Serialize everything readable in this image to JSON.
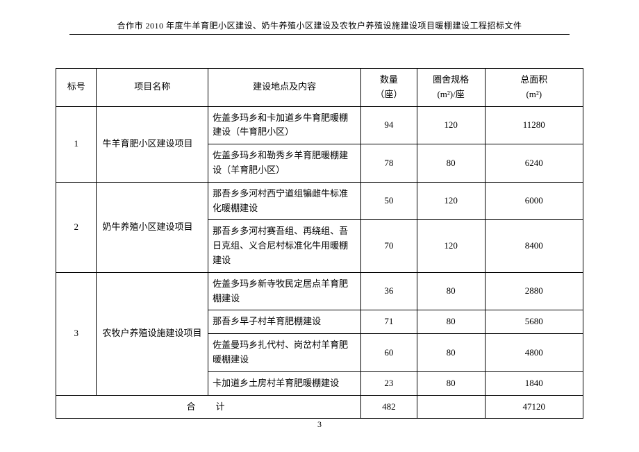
{
  "header": {
    "title": "合作市 2010 年度牛羊育肥小区建设、奶牛养殖小区建设及农牧户养殖设施建设项目暖棚建设工程招标文件"
  },
  "table": {
    "columns": {
      "idx": "标号",
      "name": "项目名称",
      "loc": "建设地点及内容",
      "qty_line1": "数量",
      "qty_line2": "（座）",
      "spec_line1": "圈舍规格",
      "spec_line2": "(m²)/座",
      "area_line1": "总面积",
      "area_line2": "(m²)"
    },
    "groups": [
      {
        "idx": "1",
        "name": "牛羊育肥小区建设项目",
        "rows": [
          {
            "loc": "佐盖多玛乡和卡加道乡牛育肥暖棚建设（牛育肥小区）",
            "qty": "94",
            "spec": "120",
            "area": "11280"
          },
          {
            "loc": "佐盖多玛乡和勒秀乡羊育肥暖棚建设（羊育肥小区）",
            "qty": "78",
            "spec": "80",
            "area": "6240"
          }
        ]
      },
      {
        "idx": "2",
        "name": "奶牛养殖小区建设项目",
        "rows": [
          {
            "loc": "那吾乡多河村西宁道组犏雌牛标准化暖棚建设",
            "qty": "50",
            "spec": "120",
            "area": "6000"
          },
          {
            "loc": "那吾乡多河村赛吾组、再绕组、吾日克组、义合尼村标准化牛用暖棚建设",
            "qty": "70",
            "spec": "120",
            "area": "8400"
          }
        ]
      },
      {
        "idx": "3",
        "name": "农牧户养殖设施建设项目",
        "rows": [
          {
            "loc": "佐盖多玛乡新寺牧民定居点羊育肥棚建设",
            "qty": "36",
            "spec": "80",
            "area": "2880"
          },
          {
            "loc": "那吾乡早子村羊育肥棚建设",
            "qty": "71",
            "spec": "80",
            "area": "5680"
          },
          {
            "loc": "佐盖曼玛乡扎代村、岗岔村羊育肥暖棚建设",
            "qty": "60",
            "spec": "80",
            "area": "4800"
          },
          {
            "loc": "卡加道乡土房村羊育肥暖棚建设",
            "qty": "23",
            "spec": "80",
            "area": "1840"
          }
        ]
      }
    ],
    "total": {
      "label": "合　计",
      "qty": "482",
      "spec": "",
      "area": "47120"
    }
  },
  "page_number": "3"
}
